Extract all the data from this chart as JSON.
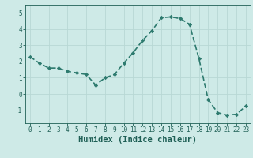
{
  "x": [
    0,
    1,
    2,
    3,
    4,
    5,
    6,
    7,
    8,
    9,
    10,
    11,
    12,
    13,
    14,
    15,
    16,
    17,
    18,
    19,
    20,
    21,
    22,
    23
  ],
  "y": [
    2.3,
    1.9,
    1.6,
    1.6,
    1.4,
    1.3,
    1.2,
    0.55,
    1.0,
    1.2,
    1.9,
    2.55,
    3.3,
    3.9,
    4.7,
    4.75,
    4.65,
    4.3,
    2.2,
    -0.35,
    -1.15,
    -1.3,
    -1.25,
    -0.75
  ],
  "line_color": "#2d7a6e",
  "marker": "D",
  "marker_size": 2.2,
  "bg_color": "#ceeae7",
  "grid_color": "#b8d8d4",
  "xlabel": "Humidex (Indice chaleur)",
  "ylim": [
    -1.8,
    5.5
  ],
  "xlim": [
    -0.5,
    23.5
  ],
  "yticks": [
    -1,
    0,
    1,
    2,
    3,
    4,
    5
  ],
  "xticks": [
    0,
    1,
    2,
    3,
    4,
    5,
    6,
    7,
    8,
    9,
    10,
    11,
    12,
    13,
    14,
    15,
    16,
    17,
    18,
    19,
    20,
    21,
    22,
    23
  ],
  "tick_color": "#1e5f55",
  "label_fontsize": 5.5,
  "xlabel_fontsize": 7.5,
  "line_width": 1.2
}
